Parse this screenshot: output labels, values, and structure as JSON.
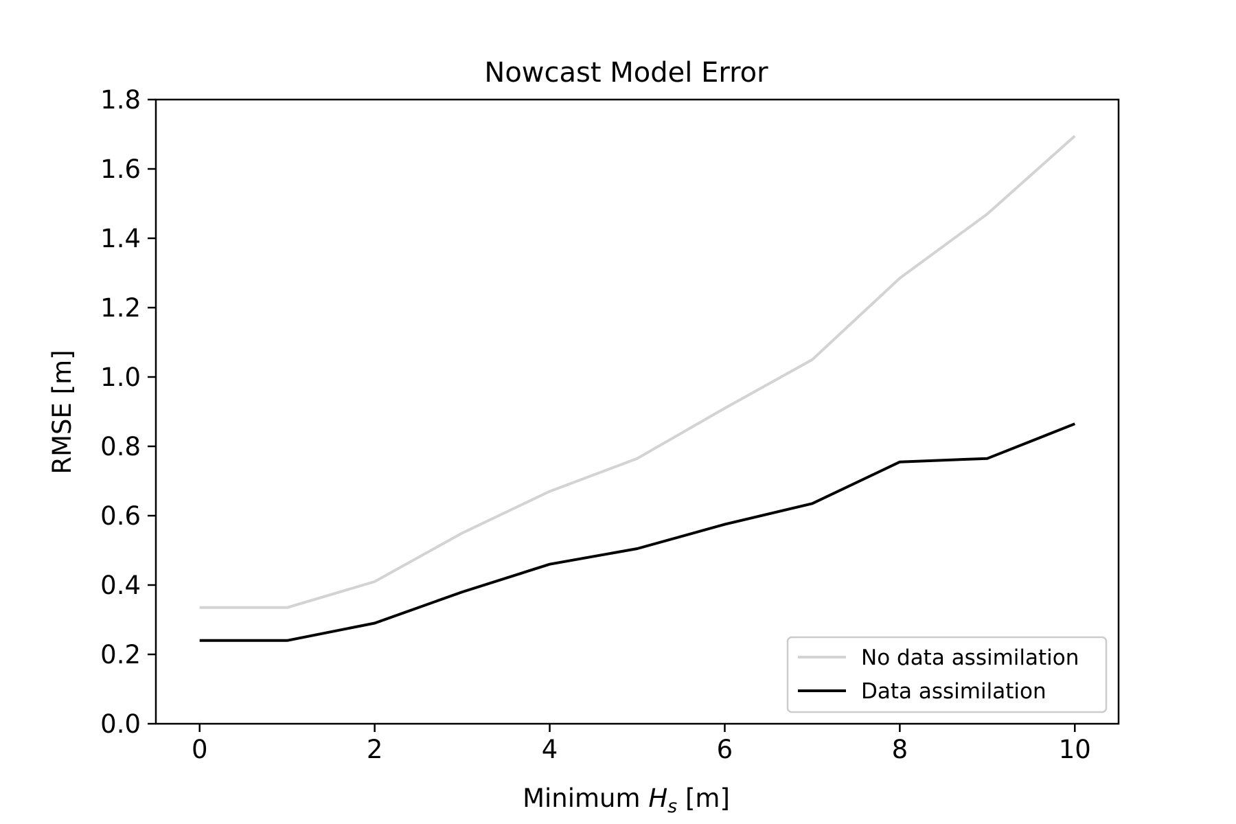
{
  "chart_data": {
    "type": "line",
    "title": "Nowcast Model Error",
    "xlabel_prefix": "Minimum ",
    "xlabel_var": "H",
    "xlabel_sub": "s",
    "xlabel_suffix": " [m]",
    "ylabel": "RMSE [m]",
    "xlim": [
      -0.5,
      10.5
    ],
    "ylim": [
      0.0,
      1.8
    ],
    "xticks": [
      0,
      2,
      4,
      6,
      8,
      10
    ],
    "xtick_labels": [
      "0",
      "2",
      "4",
      "6",
      "8",
      "10"
    ],
    "yticks": [
      0.0,
      0.2,
      0.4,
      0.6,
      0.8,
      1.0,
      1.2,
      1.4,
      1.6,
      1.8
    ],
    "ytick_labels": [
      "0.0",
      "0.2",
      "0.4",
      "0.6",
      "0.8",
      "1.0",
      "1.2",
      "1.4",
      "1.6",
      "1.8"
    ],
    "grid": false,
    "legend_position": "lower-right",
    "x": [
      0,
      1,
      2,
      3,
      4,
      5,
      6,
      7,
      8,
      9,
      10
    ],
    "series": [
      {
        "name": "No data assimilation",
        "color": "#d3d3d3",
        "values": [
          0.335,
          0.335,
          0.41,
          0.55,
          0.67,
          0.765,
          0.91,
          1.05,
          1.285,
          1.47,
          1.695
        ]
      },
      {
        "name": "Data assimilation",
        "color": "#000000",
        "values": [
          0.24,
          0.24,
          0.29,
          0.38,
          0.46,
          0.505,
          0.575,
          0.635,
          0.755,
          0.765,
          0.865
        ]
      }
    ]
  }
}
